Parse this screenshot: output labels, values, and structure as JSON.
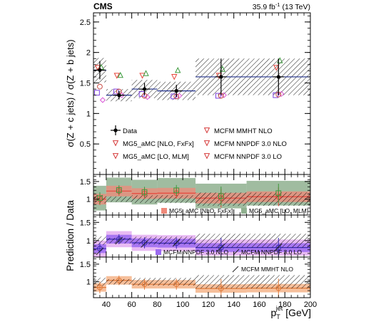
{
  "header": {
    "experiment": "CMS",
    "lumi_value": "35.9 fb",
    "lumi_exp": "-1",
    "lumi_energy": " (13 TeV)"
  },
  "colors": {
    "data": "#000000",
    "fxfx": "#e8463b",
    "mlm": "#3d9a3d",
    "nnpdf_nlo": "#7b3fe0",
    "nnpdf_lo": "#222222",
    "mmht": "#e07a3a",
    "fxfx_band": "#f08a7a",
    "mlm_band": "#8fb08f",
    "nlo_band_inner": "#9b6af0",
    "nlo_band_outer": "#e6b3f2",
    "mmht_band": "#f4b48a"
  },
  "chart_data": [
    {
      "type": "scatter",
      "panel": "main",
      "ylabel": "σ(Z + c jets) / σ(Z + b jets)",
      "xlim": [
        30,
        200
      ],
      "ylim": [
        0,
        2.65
      ],
      "yticks": [
        "0.5",
        "1",
        "1.5",
        "2",
        "2.5"
      ],
      "bins": [
        [
          30,
          40
        ],
        [
          40,
          60
        ],
        [
          60,
          80
        ],
        [
          80,
          110
        ],
        [
          110,
          150
        ],
        [
          150,
          200
        ]
      ],
      "series": [
        {
          "name": "Data",
          "x": [
            35,
            50,
            70,
            95,
            130,
            175
          ],
          "y": [
            1.71,
            1.3,
            1.4,
            1.37,
            1.6,
            1.6
          ],
          "yerr": [
            0.15,
            0.07,
            0.1,
            0.1,
            0.3,
            0.3
          ],
          "syst": [
            0.2,
            0.1,
            0.15,
            0.15,
            0.3,
            0.3
          ]
        },
        {
          "name": "MG5_aMC [NLO, FxFx]",
          "x": [
            35,
            50,
            70,
            95,
            130,
            175
          ],
          "y": [
            1.75,
            1.62,
            1.62,
            1.6,
            1.62,
            1.75
          ]
        },
        {
          "name": "MG5_aMC [LO, MLM]",
          "x": [
            35,
            50,
            70,
            95,
            130,
            175
          ],
          "y": [
            1.76,
            1.63,
            1.66,
            1.71,
            1.73,
            1.87
          ]
        },
        {
          "name": "MCFM NNPDF 3.0 NLO",
          "x": [
            35,
            50,
            70,
            95,
            130,
            175
          ],
          "y": [
            1.34,
            1.36,
            1.32,
            1.28,
            1.29,
            1.3
          ]
        },
        {
          "name": "MCFM NNPDF 3.0 LO",
          "x": [
            35,
            50,
            70,
            95,
            130,
            175
          ],
          "y": [
            1.22,
            1.3,
            1.27,
            1.29,
            1.3,
            1.32
          ]
        },
        {
          "name": "MCFM MMHT NLO",
          "x": [
            35,
            50,
            70,
            95,
            130,
            175
          ],
          "y": [
            1.44,
            1.36,
            1.29,
            1.28,
            1.29,
            1.31
          ]
        }
      ]
    },
    {
      "type": "scatter",
      "panel": "ratio-1",
      "ylim": [
        0.55,
        1.7
      ],
      "yticks": [
        "0.5",
        "1",
        "1.5"
      ],
      "series": [
        {
          "name": "MG5_aMC [NLO, FxFx]",
          "y": [
            1.0,
            1.23,
            1.16,
            1.17,
            1.03,
            1.07
          ]
        },
        {
          "name": "MG5_aMC [LO, MLM]",
          "y": [
            1.03,
            1.26,
            1.2,
            1.25,
            1.09,
            1.17
          ]
        }
      ]
    },
    {
      "type": "scatter",
      "panel": "ratio-2",
      "ylim": [
        0.55,
        1.7
      ],
      "yticks": [
        "0.5",
        "1",
        "1.5"
      ],
      "series": [
        {
          "name": "MCFM NNPDF 3.0 NLO",
          "y": [
            0.78,
            1.04,
            0.94,
            0.93,
            0.81,
            0.81
          ]
        },
        {
          "name": "MCFM NNPDF 3.0 LO",
          "y": [
            0.71,
            1.0,
            0.91,
            0.94,
            0.81,
            0.82
          ]
        }
      ]
    },
    {
      "type": "scatter",
      "panel": "ratio-3",
      "ylim": [
        0.55,
        1.7
      ],
      "yticks": [
        "0.5",
        "1",
        "1.5"
      ],
      "series": [
        {
          "name": "MCFM MMHT NLO",
          "y": [
            0.84,
            1.04,
            0.93,
            0.93,
            0.81,
            0.82
          ]
        }
      ]
    }
  ],
  "ratio_axis_label": "Prediction / Data",
  "x_axis": {
    "label_main": "p",
    "label_sub": "T",
    "label_sup": "jet",
    "label_unit": " [GeV]",
    "ticks": [
      "40",
      "60",
      "80",
      "100",
      "120",
      "140",
      "160",
      "180",
      "200"
    ]
  },
  "legend_main": [
    "Data",
    "MG5_aMC [NLO, FxFx]",
    "MG5_aMC [LO, MLM]",
    "MCFM MMHT NLO",
    "MCFM NNPDF 3.0 NLO",
    "MCFM NNPDF 3.0 LO"
  ],
  "legend_r1": [
    "MG5_aMC [NLO, FxFx]",
    "MG5_aMC [LO, MLM]"
  ],
  "legend_r2": [
    "MCFM NNPDF 3.0 NLO",
    "MCFM NNPDF 3.0 LO"
  ],
  "legend_r3": [
    "MCFM MMHT NLO"
  ]
}
